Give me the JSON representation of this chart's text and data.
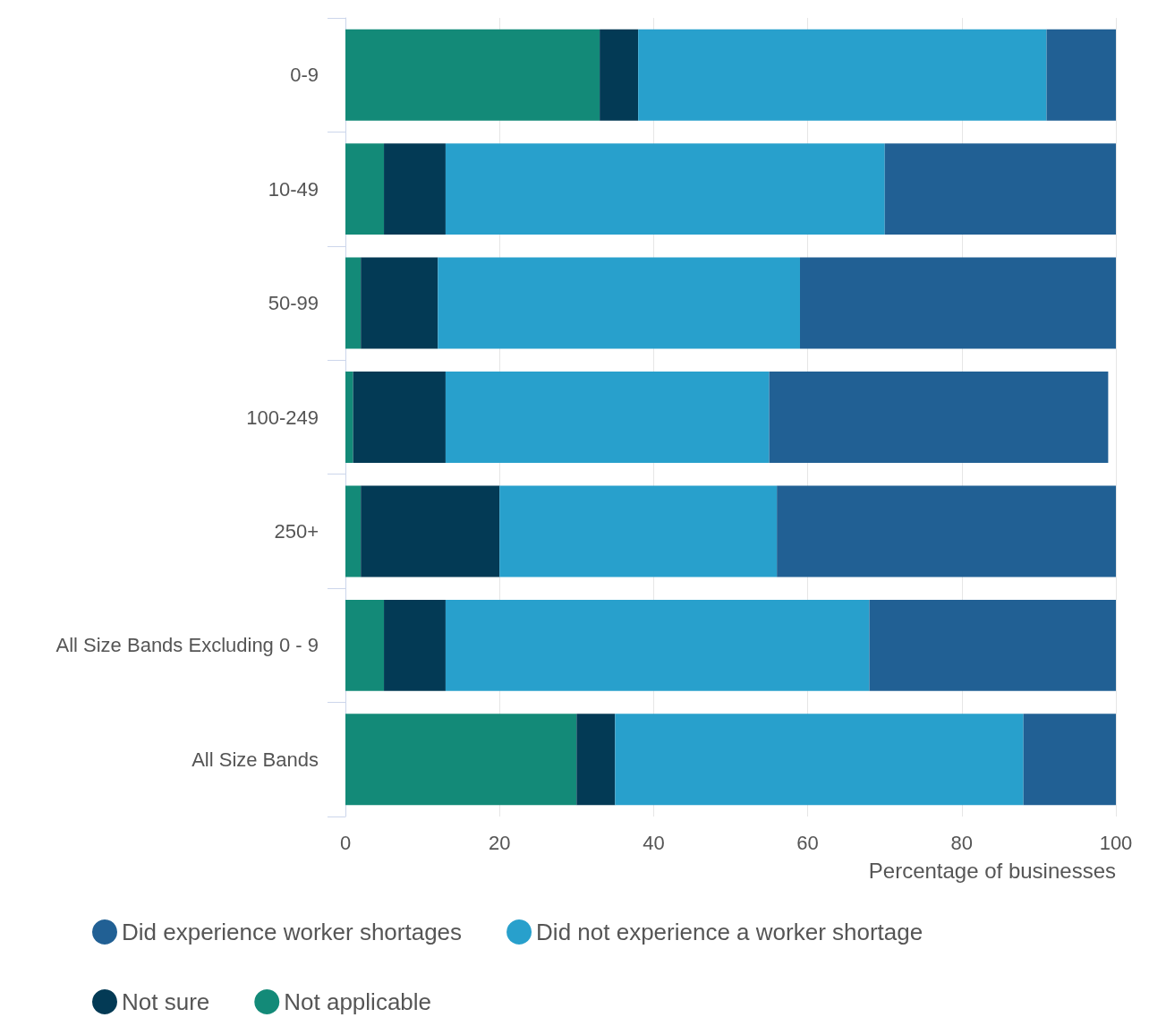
{
  "chart_data": {
    "type": "bar",
    "orientation": "horizontal",
    "stacked": true,
    "categories": [
      "0-9",
      "10-49",
      "50-99",
      "100-249",
      "250+",
      "All Size Bands Excluding 0 - 9",
      "All Size Bands"
    ],
    "series": [
      {
        "name": "Not applicable",
        "color": "#138a78",
        "values": [
          33,
          5,
          2,
          1,
          2,
          5,
          30
        ]
      },
      {
        "name": "Not sure",
        "color": "#033a55",
        "values": [
          5,
          8,
          10,
          12,
          18,
          8,
          5
        ]
      },
      {
        "name": "Did not experience a worker shortage",
        "color": "#28a0cc",
        "values": [
          53,
          57,
          47,
          42,
          36,
          55,
          53
        ]
      },
      {
        "name": "Did experience worker shortages",
        "color": "#216094",
        "values": [
          9,
          30,
          41,
          44,
          44,
          32,
          12
        ]
      }
    ],
    "xlabel": "Percentage of businesses",
    "xlim": [
      0,
      100
    ],
    "xticks": [
      0,
      20,
      40,
      60,
      80,
      100
    ],
    "grid": "x",
    "legend": "bottom"
  }
}
